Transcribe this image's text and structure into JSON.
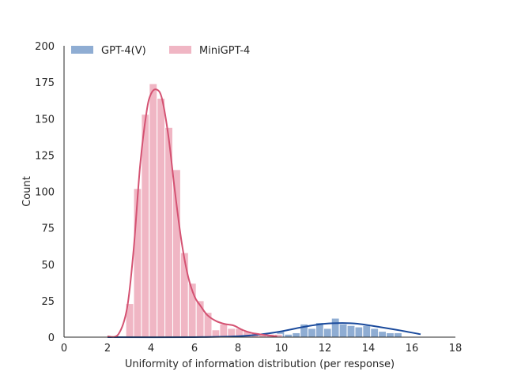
{
  "chart_data": {
    "type": "bar",
    "subtype": "histogram-with-kde",
    "xlabel": "Uniformity of information distribution (per response)",
    "ylabel": "Count",
    "xlim": [
      0,
      18
    ],
    "ylim": [
      0,
      200
    ],
    "xticks": [
      0,
      2,
      4,
      6,
      8,
      10,
      12,
      14,
      16,
      18
    ],
    "yticks": [
      0,
      25,
      50,
      75,
      100,
      125,
      150,
      175,
      200
    ],
    "grid": false,
    "legend_position": "top-left",
    "series": [
      {
        "name": "GPT-4(V)",
        "color": "#8fadd3",
        "kde_color": "#1a4a9c",
        "bin_width": 0.36,
        "bins": [
          [
            8.7,
            1
          ],
          [
            9.06,
            2
          ],
          [
            9.42,
            2
          ],
          [
            9.78,
            4
          ],
          [
            10.14,
            2
          ],
          [
            10.5,
            3
          ],
          [
            10.86,
            9
          ],
          [
            11.22,
            6
          ],
          [
            11.58,
            10
          ],
          [
            11.94,
            6
          ],
          [
            12.3,
            13
          ],
          [
            12.66,
            9
          ],
          [
            13.02,
            8
          ],
          [
            13.38,
            7
          ],
          [
            13.74,
            8
          ],
          [
            14.1,
            6
          ],
          [
            14.46,
            4
          ],
          [
            14.82,
            3
          ],
          [
            15.18,
            3
          ]
        ],
        "kde": [
          [
            2,
            0
          ],
          [
            6,
            0
          ],
          [
            8,
            0.6
          ],
          [
            9,
            1.8
          ],
          [
            10,
            4
          ],
          [
            11,
            7
          ],
          [
            12,
            9.2
          ],
          [
            12.8,
            9.7
          ],
          [
            13.5,
            9.2
          ],
          [
            14.5,
            7
          ],
          [
            15.5,
            4.5
          ],
          [
            16.4,
            2
          ]
        ]
      },
      {
        "name": "MiniGPT-4",
        "color": "#f0b6c4",
        "kde_color": "#d45272",
        "bin_width": 0.36,
        "bins": [
          [
            2.84,
            23
          ],
          [
            3.2,
            102
          ],
          [
            3.56,
            153
          ],
          [
            3.92,
            174
          ],
          [
            4.28,
            164
          ],
          [
            4.64,
            144
          ],
          [
            5.0,
            115
          ],
          [
            5.36,
            58
          ],
          [
            5.72,
            37
          ],
          [
            6.08,
            25
          ],
          [
            6.44,
            17
          ],
          [
            6.8,
            5
          ],
          [
            7.16,
            9
          ],
          [
            7.52,
            6
          ],
          [
            7.88,
            6
          ],
          [
            8.24,
            4
          ],
          [
            8.6,
            3
          ],
          [
            8.96,
            2
          ],
          [
            9.32,
            2
          ],
          [
            9.68,
            2
          ]
        ],
        "kde": [
          [
            2,
            0.5
          ],
          [
            2.5,
            2
          ],
          [
            2.9,
            20
          ],
          [
            3.2,
            60
          ],
          [
            3.5,
            118
          ],
          [
            3.8,
            155
          ],
          [
            4.0,
            167
          ],
          [
            4.25,
            170
          ],
          [
            4.5,
            164
          ],
          [
            4.8,
            138
          ],
          [
            5.1,
            100
          ],
          [
            5.4,
            66
          ],
          [
            5.7,
            42
          ],
          [
            6.0,
            28
          ],
          [
            6.3,
            21
          ],
          [
            6.6,
            15
          ],
          [
            7.0,
            11
          ],
          [
            7.4,
            9
          ],
          [
            7.8,
            8
          ],
          [
            8.2,
            5
          ],
          [
            8.6,
            3
          ],
          [
            9.0,
            2
          ],
          [
            9.5,
            1
          ],
          [
            9.8,
            0.5
          ]
        ]
      }
    ]
  }
}
